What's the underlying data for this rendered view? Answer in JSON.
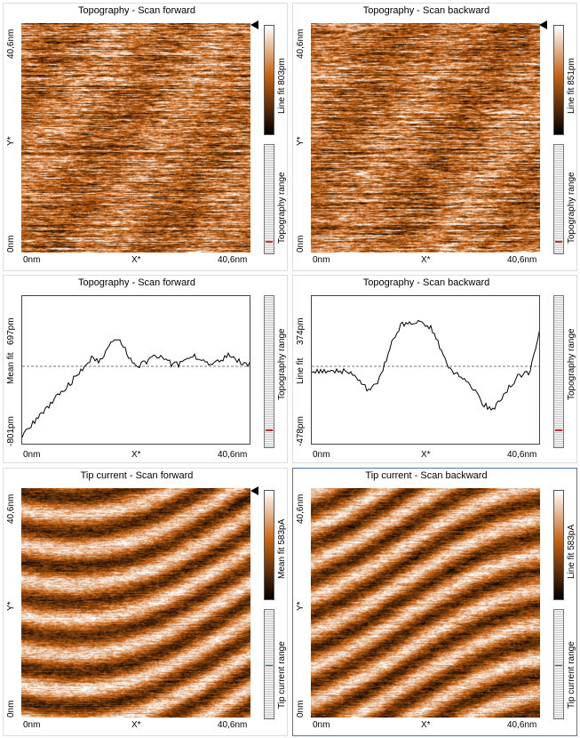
{
  "colors": {
    "palette_dark": "#000000",
    "palette_mid": "#c86414",
    "palette_light": "#ffffff",
    "active_border": "#4a78b8",
    "range_marker": "#c03030"
  },
  "panels": [
    {
      "title": "Topography - Scan forward",
      "kind": "image",
      "y_top": "40,6nm",
      "y_mid": "Y*",
      "y_bot": "0nm",
      "x_left": "0nm",
      "x_mid": "X*",
      "x_right": "40,6nm",
      "cbar_label": "Line fit 803pm",
      "range_label": "Topography range",
      "pattern": "topo"
    },
    {
      "title": "Topography - Scan backward",
      "kind": "image",
      "y_top": "40,6nm",
      "y_mid": "Y*",
      "y_bot": "0nm",
      "x_left": "0nm",
      "x_mid": "X*",
      "x_right": "40,6nm",
      "cbar_label": "Line fit 851pm",
      "range_label": "Topography range",
      "pattern": "topo"
    },
    {
      "title": "Topography - Scan forward",
      "kind": "line",
      "y_top": "697pm",
      "y_mid": "Mean fit",
      "y_bot": "-801pm",
      "x_left": "0nm",
      "x_mid": "X*",
      "x_right": "40,6nm",
      "range_label": "Topography range"
    },
    {
      "title": "Topography - Scan backward",
      "kind": "line",
      "y_top": "374pm",
      "y_mid": "Line fit",
      "y_bot": "-478pm",
      "x_left": "0nm",
      "x_mid": "X*",
      "x_right": "40,6nm",
      "range_label": "Topography range"
    },
    {
      "title": "Tip current - Scan forward",
      "kind": "image",
      "y_top": "40,6nm",
      "y_mid": "Y*",
      "y_bot": "0nm",
      "x_left": "0nm",
      "x_mid": "X*",
      "x_right": "40,6nm",
      "cbar_label": "Mean fit 583pA",
      "range_label": "Tip current range",
      "pattern": "current"
    },
    {
      "title": "Tip current - Scan backward",
      "kind": "image",
      "y_top": "40,6nm",
      "y_mid": "Y*",
      "y_bot": "0nm",
      "x_left": "0nm",
      "x_mid": "X*",
      "x_right": "40,6nm",
      "cbar_label": "Line fit 583pA",
      "range_label": "Tip current range",
      "pattern": "current"
    }
  ]
}
